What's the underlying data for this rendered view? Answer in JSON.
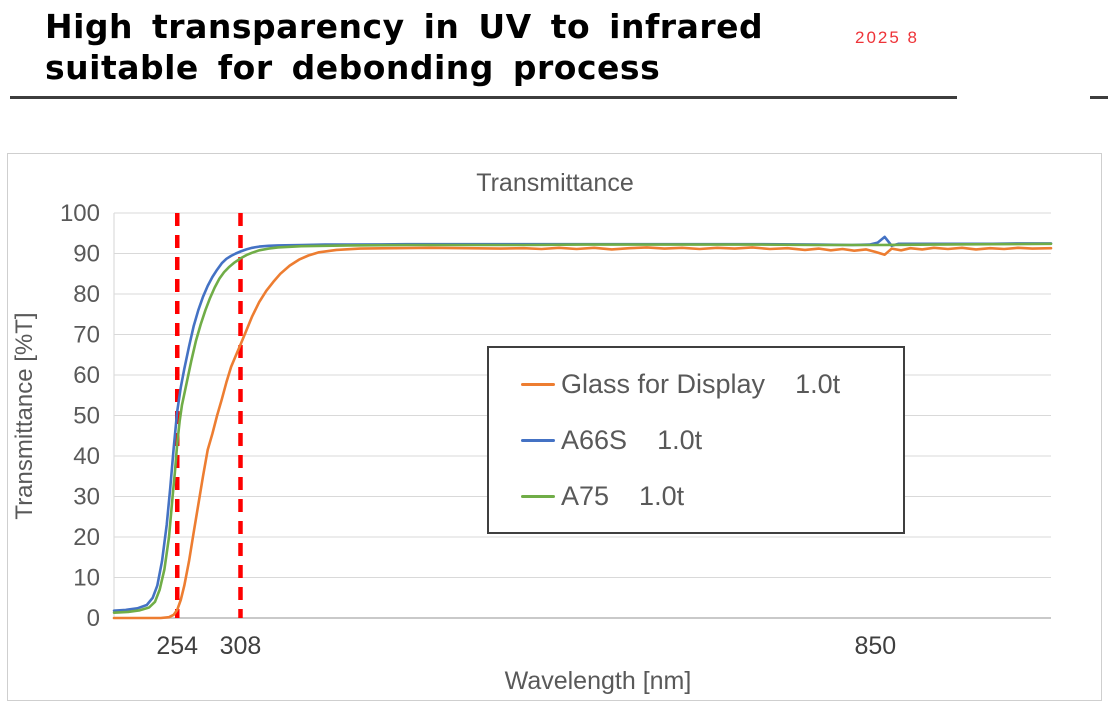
{
  "page": {
    "title_line1": "High transparency in UV to infrared",
    "title_line2": "suitable for debonding process",
    "date_note": "2025 8",
    "colors": {
      "title": "#000000",
      "date_note": "#ee3338",
      "rule": "#3d3d3d"
    }
  },
  "chart": {
    "title": "Transmittance",
    "x_axis_title": "Wavelength [nm]",
    "y_axis_title": "Transmittance [%T]",
    "text_color": "#595959",
    "x_tick_color": "#3f3f3f",
    "grid_color": "#d9d9d9",
    "axis_color": "#b7b7b7",
    "panel_border_color": "#cfcfcf",
    "x_range": [
      200,
      1000
    ],
    "y_range": [
      0,
      100
    ],
    "y_ticks": [
      0,
      10,
      20,
      30,
      40,
      50,
      60,
      70,
      80,
      90,
      100
    ],
    "x_tick_labels": [
      {
        "value": 254,
        "label": "254"
      },
      {
        "value": 308,
        "label": "308"
      },
      {
        "value": 850,
        "label": "850"
      }
    ],
    "reference_lines": {
      "color": "#ff0000",
      "values": [
        254,
        308
      ]
    },
    "legend": {
      "border_color": "#3f3f3f",
      "entries": [
        {
          "name": "Glass for Display",
          "thickness": "1.0t",
          "color": "#ED7D31"
        },
        {
          "name": "A66S",
          "thickness": "1.0t",
          "color": "#4472C4"
        },
        {
          "name": "A75",
          "thickness": "1.0t",
          "color": "#70AD47"
        }
      ]
    }
  },
  "chart_data": {
    "type": "line",
    "title": "Transmittance",
    "xlabel": "Wavelength [nm]",
    "ylabel": "Transmittance [%T]",
    "xlim": [
      200,
      1000
    ],
    "ylim": [
      0,
      100
    ],
    "grid": "horizontal",
    "legend_position": "center-right",
    "annotations": [
      "red dashed vertical lines at 254 nm and 308 nm",
      "x tick labels only at 254, 308, 850"
    ],
    "series": [
      {
        "name": "Glass for Display 1.0t",
        "color": "#ED7D31",
        "points": [
          [
            200,
            0
          ],
          [
            240,
            0
          ],
          [
            247,
            0.2
          ],
          [
            251,
            0.8
          ],
          [
            254,
            2
          ],
          [
            257,
            4.5
          ],
          [
            260,
            8
          ],
          [
            264,
            14
          ],
          [
            268,
            21
          ],
          [
            272,
            28
          ],
          [
            276,
            35
          ],
          [
            280,
            41.5
          ],
          [
            284,
            45.5
          ],
          [
            288,
            50
          ],
          [
            292,
            54
          ],
          [
            296,
            58.2
          ],
          [
            300,
            62
          ],
          [
            304,
            64.8
          ],
          [
            308,
            67.5
          ],
          [
            313,
            71
          ],
          [
            318,
            74.5
          ],
          [
            324,
            78
          ],
          [
            330,
            80.8
          ],
          [
            336,
            83
          ],
          [
            342,
            85
          ],
          [
            350,
            87
          ],
          [
            358,
            88.5
          ],
          [
            366,
            89.5
          ],
          [
            375,
            90.3
          ],
          [
            390,
            90.9
          ],
          [
            410,
            91.2
          ],
          [
            440,
            91.3
          ],
          [
            470,
            91.4
          ],
          [
            500,
            91.3
          ],
          [
            530,
            91.2
          ],
          [
            550,
            91.3
          ],
          [
            565,
            91.1
          ],
          [
            580,
            91.4
          ],
          [
            595,
            91.1
          ],
          [
            610,
            91.4
          ],
          [
            625,
            91
          ],
          [
            640,
            91.3
          ],
          [
            655,
            91.5
          ],
          [
            670,
            91.2
          ],
          [
            685,
            91.4
          ],
          [
            700,
            91.1
          ],
          [
            715,
            91.4
          ],
          [
            730,
            91.2
          ],
          [
            745,
            91.5
          ],
          [
            760,
            91.1
          ],
          [
            775,
            91.3
          ],
          [
            790,
            90.9
          ],
          [
            802,
            91.2
          ],
          [
            812,
            90.8
          ],
          [
            822,
            91.1
          ],
          [
            832,
            90.7
          ],
          [
            842,
            91
          ],
          [
            850,
            90.4
          ],
          [
            858,
            89.7
          ],
          [
            864,
            91.2
          ],
          [
            872,
            90.8
          ],
          [
            880,
            91.3
          ],
          [
            890,
            91
          ],
          [
            900,
            91.4
          ],
          [
            912,
            91.1
          ],
          [
            924,
            91.4
          ],
          [
            936,
            91
          ],
          [
            948,
            91.3
          ],
          [
            960,
            91.1
          ],
          [
            972,
            91.4
          ],
          [
            984,
            91.2
          ],
          [
            1000,
            91.3
          ]
        ]
      },
      {
        "name": "A66S 1.0t",
        "color": "#4472C4",
        "points": [
          [
            200,
            1.8
          ],
          [
            210,
            2
          ],
          [
            220,
            2.4
          ],
          [
            228,
            3.2
          ],
          [
            233,
            5
          ],
          [
            237,
            8
          ],
          [
            241,
            14
          ],
          [
            245,
            23
          ],
          [
            248,
            32
          ],
          [
            251,
            42
          ],
          [
            254,
            51
          ],
          [
            257,
            57
          ],
          [
            260,
            61.5
          ],
          [
            264,
            67
          ],
          [
            268,
            72
          ],
          [
            272,
            76
          ],
          [
            276,
            79.3
          ],
          [
            280,
            82
          ],
          [
            284,
            84.2
          ],
          [
            288,
            86
          ],
          [
            292,
            87.6
          ],
          [
            296,
            88.7
          ],
          [
            300,
            89.4
          ],
          [
            304,
            90
          ],
          [
            308,
            90.5
          ],
          [
            313,
            91
          ],
          [
            318,
            91.4
          ],
          [
            324,
            91.7
          ],
          [
            332,
            91.9
          ],
          [
            340,
            92
          ],
          [
            360,
            92.1
          ],
          [
            380,
            92.2
          ],
          [
            400,
            92.2
          ],
          [
            450,
            92.3
          ],
          [
            500,
            92.3
          ],
          [
            550,
            92.3
          ],
          [
            600,
            92.3
          ],
          [
            650,
            92.3
          ],
          [
            700,
            92.3
          ],
          [
            750,
            92.3
          ],
          [
            800,
            92.2
          ],
          [
            830,
            92.1
          ],
          [
            845,
            92.2
          ],
          [
            852,
            92.7
          ],
          [
            858,
            94.1
          ],
          [
            864,
            91.9
          ],
          [
            870,
            92.4
          ],
          [
            890,
            92.4
          ],
          [
            920,
            92.4
          ],
          [
            950,
            92.4
          ],
          [
            975,
            92.5
          ],
          [
            1000,
            92.5
          ]
        ]
      },
      {
        "name": "A75 1.0t",
        "color": "#70AD47",
        "points": [
          [
            200,
            1.3
          ],
          [
            212,
            1.5
          ],
          [
            222,
            1.9
          ],
          [
            230,
            2.6
          ],
          [
            235,
            4
          ],
          [
            239,
            7
          ],
          [
            243,
            12
          ],
          [
            247,
            20
          ],
          [
            250,
            30
          ],
          [
            252,
            36
          ],
          [
            254,
            43
          ],
          [
            256,
            48.5
          ],
          [
            258,
            52.5
          ],
          [
            262,
            58
          ],
          [
            266,
            63.5
          ],
          [
            270,
            68.5
          ],
          [
            274,
            72.5
          ],
          [
            278,
            76
          ],
          [
            282,
            79
          ],
          [
            286,
            81.6
          ],
          [
            290,
            83.8
          ],
          [
            294,
            85.4
          ],
          [
            298,
            86.6
          ],
          [
            303,
            87.8
          ],
          [
            308,
            88.8
          ],
          [
            313,
            89.6
          ],
          [
            318,
            90.2
          ],
          [
            324,
            90.8
          ],
          [
            332,
            91.2
          ],
          [
            340,
            91.5
          ],
          [
            360,
            91.8
          ],
          [
            380,
            91.9
          ],
          [
            400,
            92
          ],
          [
            450,
            92.1
          ],
          [
            500,
            92.1
          ],
          [
            550,
            92.1
          ],
          [
            600,
            92.2
          ],
          [
            650,
            92.2
          ],
          [
            700,
            92.2
          ],
          [
            750,
            92.2
          ],
          [
            800,
            92.1
          ],
          [
            850,
            92.1
          ],
          [
            900,
            92.2
          ],
          [
            950,
            92.3
          ],
          [
            1000,
            92.4
          ]
        ]
      }
    ]
  }
}
